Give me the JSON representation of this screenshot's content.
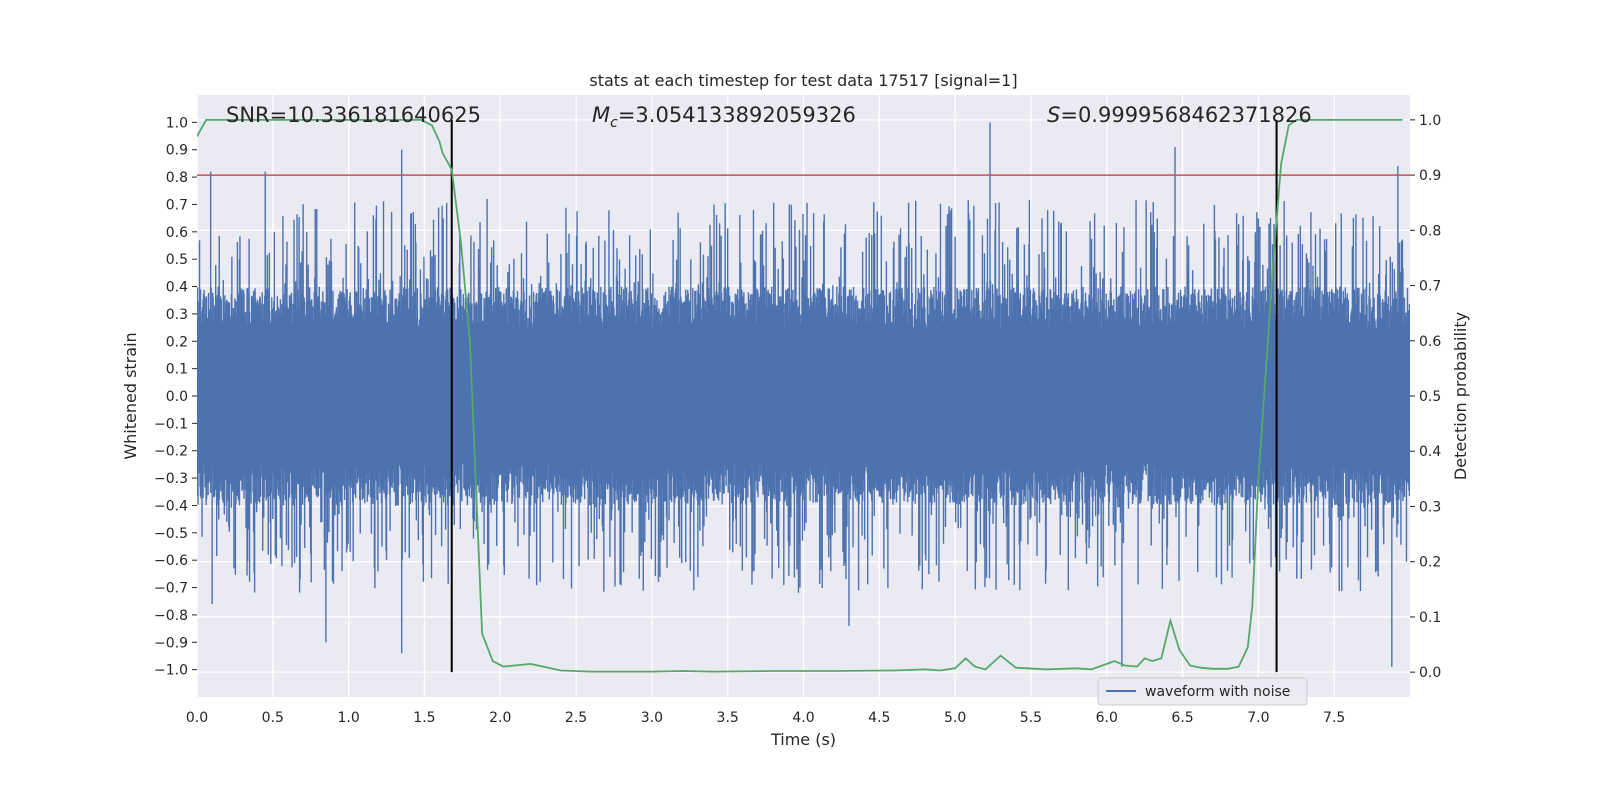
{
  "chart_data": {
    "type": "line",
    "title": "stats at each timestep for test data 17517 [signal=1]",
    "xlabel": "Time (s)",
    "ylabel": "Whitened strain",
    "y2label": "Detection probability",
    "xlim": [
      0.0,
      8.0
    ],
    "ylim": [
      -1.1,
      1.1
    ],
    "y2lim": [
      -0.045,
      1.045
    ],
    "xticks": [
      0.0,
      0.5,
      1.0,
      1.5,
      2.0,
      2.5,
      3.0,
      3.5,
      4.0,
      4.5,
      5.0,
      5.5,
      6.0,
      6.5,
      7.0,
      7.5
    ],
    "xtick_labels": [
      "0.0",
      "0.5",
      "1.0",
      "1.5",
      "2.0",
      "2.5",
      "3.0",
      "3.5",
      "4.0",
      "4.5",
      "5.0",
      "5.5",
      "6.0",
      "6.5",
      "7.0",
      "7.5"
    ],
    "yticks": [
      1.0,
      0.9,
      0.8,
      0.7,
      0.6,
      0.5,
      0.4,
      0.3,
      0.2,
      0.1,
      0.0,
      -0.1,
      -0.2,
      -0.3,
      -0.4,
      -0.5,
      -0.6,
      -0.7,
      -0.8,
      -0.9,
      -1.0
    ],
    "ytick_labels": [
      "1.0",
      "0.9",
      "0.8",
      "0.7",
      "0.6",
      "0.5",
      "0.4",
      "0.3",
      "0.2",
      "0.1",
      "0.0",
      "−0.1",
      "−0.2",
      "−0.3",
      "−0.4",
      "−0.5",
      "−0.6",
      "−0.7",
      "−0.8",
      "−0.9",
      "−1.0"
    ],
    "y2ticks": [
      1.0,
      0.9,
      0.8,
      0.7,
      0.6,
      0.5,
      0.4,
      0.3,
      0.2,
      0.1,
      0.0
    ],
    "y2tick_labels": [
      "1.0",
      "0.9",
      "0.8",
      "0.7",
      "0.6",
      "0.5",
      "0.4",
      "0.3",
      "0.2",
      "0.1",
      "0.0"
    ],
    "annotations": {
      "snr": "SNR=10.336181640625",
      "mc_symbol": "M",
      "mc_sub": "c",
      "mc_value": "=3.054133892059326",
      "s_symbol": "S",
      "s_value": "=0.9999568462371826"
    },
    "threshold": {
      "value": 0.9,
      "axis": "y2",
      "color": "#c44e52"
    },
    "vlines": [
      1.68,
      7.12
    ],
    "series": [
      {
        "name": "waveform with noise",
        "axis": "y",
        "color": "#4c72b0",
        "envelope": {
          "band_core": 0.4,
          "max_peak": 1.0,
          "min_trough": -0.99,
          "notable_peaks": [
            [
              0.09,
              0.82
            ],
            [
              0.45,
              0.82
            ],
            [
              1.35,
              0.9
            ],
            [
              5.23,
              1.0
            ],
            [
              6.45,
              0.91
            ],
            [
              7.92,
              0.84
            ]
          ],
          "notable_troughs": [
            [
              0.1,
              -0.76
            ],
            [
              0.85,
              -0.9
            ],
            [
              1.35,
              -0.94
            ],
            [
              4.3,
              -0.84
            ],
            [
              6.1,
              -0.99
            ],
            [
              7.88,
              -0.99
            ]
          ]
        }
      },
      {
        "name": "detection probability",
        "axis": "y2",
        "color": "#55a868",
        "x": [
          0.0,
          0.06,
          0.2,
          0.4,
          0.6,
          0.8,
          1.0,
          1.2,
          1.4,
          1.48,
          1.55,
          1.6,
          1.62,
          1.68,
          1.74,
          1.8,
          1.88,
          1.95,
          2.02,
          2.2,
          2.4,
          2.6,
          3.0,
          3.2,
          3.4,
          3.8,
          4.2,
          4.6,
          4.8,
          4.9,
          5.0,
          5.07,
          5.13,
          5.2,
          5.3,
          5.4,
          5.6,
          5.8,
          5.9,
          6.0,
          6.05,
          6.12,
          6.2,
          6.25,
          6.3,
          6.36,
          6.42,
          6.48,
          6.55,
          6.62,
          6.7,
          6.8,
          6.87,
          6.93,
          6.96,
          7.0,
          7.05,
          7.1,
          7.15,
          7.2,
          7.25,
          7.3,
          7.5,
          7.7,
          7.95
        ],
        "y": [
          0.97,
          1.0,
          1.0,
          1.0,
          1.0,
          1.0,
          1.0,
          1.0,
          1.0,
          1.0,
          0.99,
          0.96,
          0.94,
          0.91,
          0.78,
          0.6,
          0.07,
          0.02,
          0.01,
          0.015,
          0.003,
          0.001,
          0.001,
          0.002,
          0.001,
          0.002,
          0.002,
          0.003,
          0.005,
          0.003,
          0.007,
          0.025,
          0.01,
          0.005,
          0.03,
          0.008,
          0.005,
          0.007,
          0.005,
          0.015,
          0.02,
          0.012,
          0.01,
          0.025,
          0.02,
          0.025,
          0.093,
          0.04,
          0.012,
          0.008,
          0.006,
          0.006,
          0.01,
          0.045,
          0.12,
          0.35,
          0.55,
          0.75,
          0.92,
          0.99,
          1.0,
          1.0,
          1.0,
          1.0,
          1.0
        ]
      }
    ],
    "legend": {
      "entries": [
        "waveform with noise"
      ],
      "placement": "bottom-right"
    },
    "grid": true,
    "colors": {
      "plot_background": "#eaeaf2",
      "grid": "#ffffff",
      "vline": "#000000",
      "text": "#262626"
    }
  }
}
